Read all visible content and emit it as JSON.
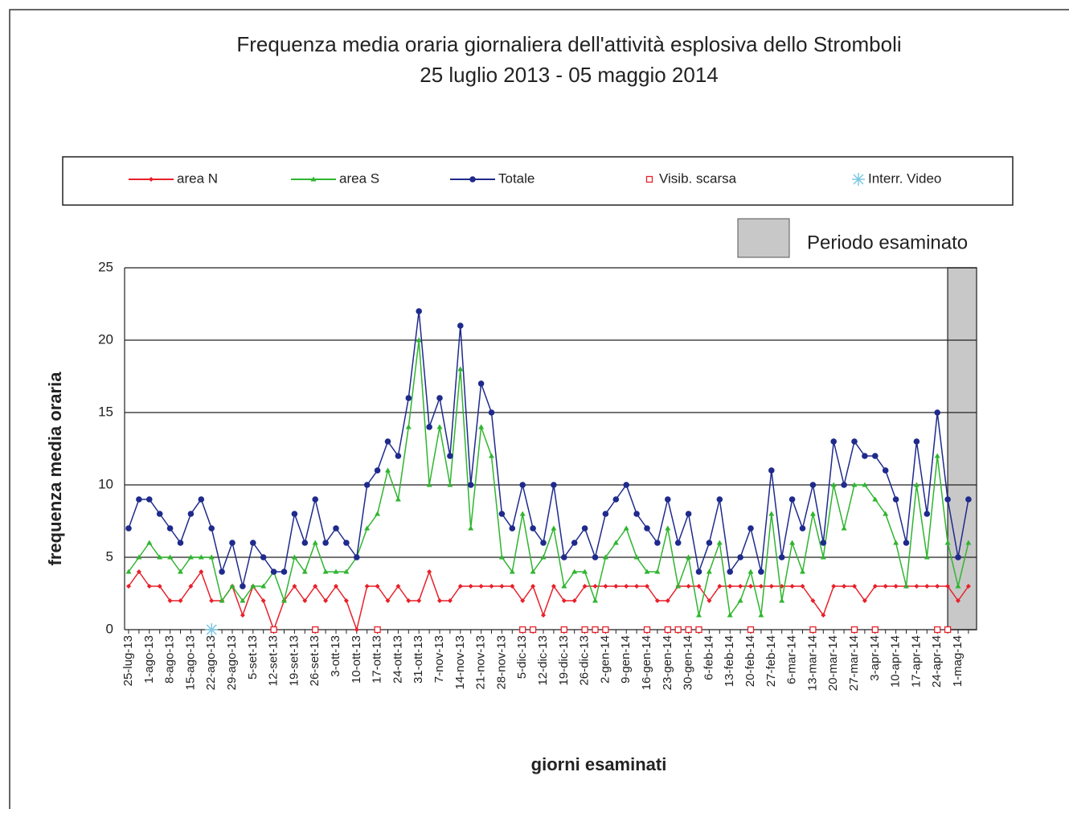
{
  "chart_data": {
    "type": "line",
    "title": "Frequenza media oraria giornaliera dell'attività esplosiva dello Stromboli",
    "subtitle": "25 luglio 2013 - 05 maggio 2014",
    "x_label": "giorni esaminati",
    "y_label": "frequenza  media oraria",
    "categories": [
      "25-lug-13",
      null,
      "1-ago-13",
      null,
      "8-ago-13",
      null,
      "15-ago-13",
      null,
      "22-ago-13",
      null,
      "29-ago-13",
      null,
      "5-set-13",
      null,
      "12-set-13",
      null,
      "19-set-13",
      null,
      "26-set-13",
      null,
      "3-ott-13",
      null,
      "10-ott-13",
      null,
      "17-ott-13",
      null,
      "24-ott-13",
      null,
      "31-ott-13",
      null,
      "7-nov-13",
      null,
      "14-nov-13",
      null,
      "21-nov-13",
      null,
      "28-nov-13",
      null,
      "5-dic-13",
      null,
      "12-dic-13",
      null,
      "19-dic-13",
      null,
      "26-dic-13",
      null,
      "2-gen-14",
      null,
      "9-gen-14",
      null,
      "16-gen-14",
      null,
      "23-gen-14",
      null,
      "30-gen-14",
      null,
      "6-feb-14",
      null,
      "13-feb-14",
      null,
      "20-feb-14",
      null,
      "27-feb-14",
      null,
      "6-mar-14",
      null,
      "13-mar-14",
      null,
      "20-mar-14",
      null,
      "27-mar-14",
      null,
      "3-apr-14",
      null,
      "10-apr-14",
      null,
      "17-apr-14",
      null,
      "24-apr-14",
      null,
      "1-mag-14",
      null
    ],
    "series": [
      {
        "name": "area N",
        "color": "#e8202a",
        "marker": "diamond",
        "values": [
          3,
          4,
          3,
          3,
          2,
          2,
          3,
          4,
          2,
          2,
          3,
          1,
          3,
          2,
          0,
          2,
          3,
          2,
          3,
          2,
          3,
          2,
          0,
          3,
          3,
          2,
          3,
          2,
          2,
          4,
          2,
          2,
          3,
          3,
          3,
          3,
          3,
          3,
          2,
          3,
          1,
          3,
          2,
          2,
          3,
          3,
          3,
          3,
          3,
          3,
          3,
          2,
          2,
          3,
          3,
          3,
          2,
          3,
          3,
          3,
          3,
          3,
          3,
          3,
          3,
          3,
          2,
          1,
          3,
          3,
          3,
          2,
          3,
          3,
          3,
          3,
          3,
          3,
          3,
          3,
          2,
          3
        ]
      },
      {
        "name": "area S",
        "color": "#2fb52f",
        "marker": "triangle",
        "values": [
          4,
          5,
          6,
          5,
          5,
          4,
          5,
          5,
          5,
          2,
          3,
          2,
          3,
          3,
          4,
          2,
          5,
          4,
          6,
          4,
          4,
          4,
          5,
          7,
          8,
          11,
          9,
          14,
          20,
          10,
          14,
          10,
          18,
          7,
          14,
          12,
          5,
          4,
          8,
          4,
          5,
          7,
          3,
          4,
          4,
          2,
          5,
          6,
          7,
          5,
          4,
          4,
          7,
          3,
          5,
          1,
          4,
          6,
          1,
          2,
          4,
          1,
          8,
          2,
          6,
          4,
          8,
          5,
          10,
          7,
          10,
          10,
          9,
          8,
          6,
          3,
          10,
          5,
          12,
          6,
          3,
          6
        ]
      },
      {
        "name": "Totale",
        "color": "#1f2a8c",
        "marker": "circle",
        "values": [
          7,
          9,
          9,
          8,
          7,
          6,
          8,
          9,
          7,
          4,
          6,
          3,
          6,
          5,
          4,
          4,
          8,
          6,
          9,
          6,
          7,
          6,
          5,
          10,
          11,
          13,
          12,
          16,
          22,
          14,
          16,
          12,
          21,
          10,
          17,
          15,
          8,
          7,
          10,
          7,
          6,
          10,
          5,
          6,
          7,
          5,
          8,
          9,
          10,
          8,
          7,
          6,
          9,
          6,
          8,
          4,
          6,
          9,
          4,
          5,
          7,
          4,
          11,
          5,
          9,
          7,
          10,
          6,
          13,
          10,
          13,
          12,
          12,
          11,
          9,
          6,
          13,
          8,
          15,
          9,
          5,
          9
        ]
      },
      {
        "name": "Visib. scarsa",
        "color": "#e8202a",
        "marker": "square",
        "values": [
          null,
          null,
          null,
          null,
          null,
          null,
          null,
          null,
          null,
          null,
          null,
          null,
          null,
          null,
          0,
          null,
          null,
          null,
          0,
          null,
          null,
          null,
          null,
          null,
          0,
          null,
          null,
          null,
          null,
          null,
          null,
          null,
          null,
          null,
          null,
          null,
          null,
          null,
          0,
          0,
          null,
          null,
          0,
          null,
          0,
          0,
          0,
          null,
          null,
          null,
          0,
          null,
          0,
          0,
          0,
          0,
          null,
          null,
          null,
          null,
          0,
          null,
          null,
          null,
          null,
          null,
          0,
          null,
          null,
          null,
          0,
          null,
          0,
          null,
          null,
          null,
          null,
          null,
          0,
          0,
          null,
          null
        ]
      },
      {
        "name": "Interr. Video",
        "color": "#7ec8e3",
        "marker": "star",
        "values": [
          null,
          null,
          null,
          null,
          null,
          null,
          null,
          null,
          0,
          null,
          null,
          null,
          null,
          null,
          null,
          null,
          null,
          null,
          null,
          null,
          null,
          null,
          null,
          null,
          null,
          null,
          null,
          null,
          null,
          null,
          null,
          null,
          null,
          null,
          null,
          null,
          null,
          null,
          null,
          null,
          null,
          null,
          null,
          null,
          null,
          null,
          null,
          null,
          null,
          null,
          null,
          null,
          null,
          null,
          null,
          null,
          null,
          null,
          null,
          null,
          null,
          null,
          null,
          null,
          null,
          null,
          null,
          null,
          null,
          null,
          null,
          null,
          null,
          null,
          null,
          null,
          null,
          null,
          null,
          null,
          null,
          null
        ]
      }
    ],
    "highlight": {
      "label": "Periodo esaminato",
      "start": 79,
      "end": 81,
      "color": "#c8c8c8"
    },
    "ylim": [
      0,
      25
    ],
    "yticks": [
      0,
      5,
      10,
      15,
      20,
      25
    ],
    "grid": true
  }
}
